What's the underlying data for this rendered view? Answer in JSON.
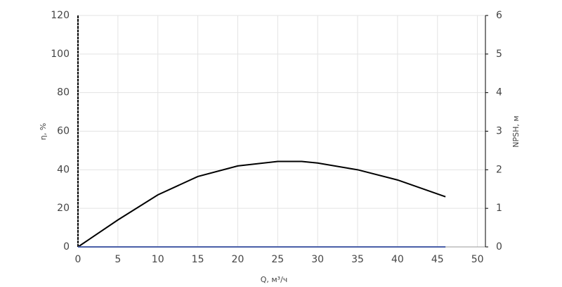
{
  "chart_data": {
    "type": "line",
    "xlabel": "Q, м³/ч",
    "ylabel": "η, %",
    "y2label": "NPSH, м",
    "xlim": [
      0,
      51
    ],
    "xticks": [
      0,
      5,
      10,
      15,
      20,
      25,
      30,
      35,
      40,
      45,
      50
    ],
    "ylim": [
      0,
      120
    ],
    "yticks": [
      0,
      20,
      40,
      60,
      80,
      100,
      120
    ],
    "y2lim": [
      0,
      6
    ],
    "y2ticks": [
      0,
      1,
      2,
      3,
      4,
      5,
      6
    ],
    "grid": true,
    "series": [
      {
        "color": "#000000",
        "x": [
          0,
          5,
          10,
          15,
          20,
          25,
          28,
          30,
          35,
          40,
          46
        ],
        "values": [
          0,
          14,
          27,
          36.5,
          42,
          44.3,
          44.3,
          43.5,
          40,
          34.7,
          26
        ]
      },
      {
        "color": "#4a5fa8",
        "axis": "y2",
        "x": [
          0,
          46
        ],
        "values": [
          0,
          0
        ]
      }
    ]
  }
}
